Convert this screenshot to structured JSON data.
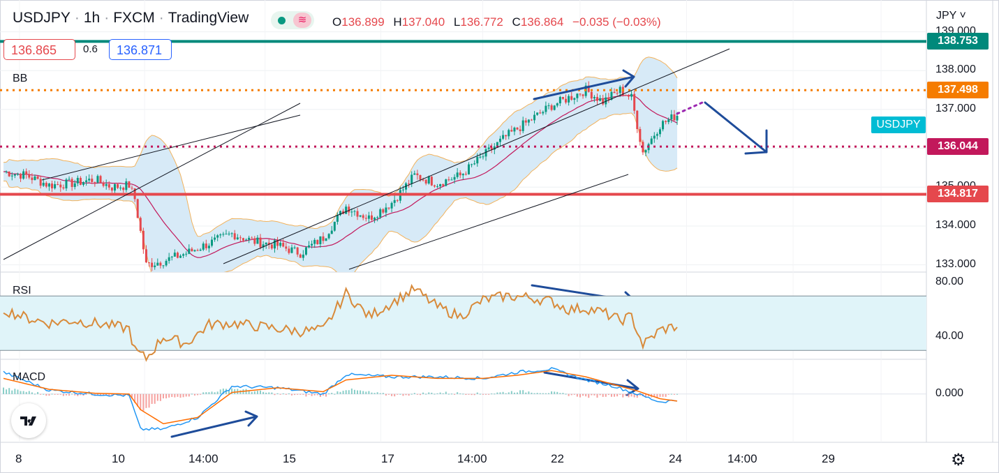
{
  "header": {
    "symbol": "USDJPY",
    "interval": "1h",
    "exchange": "FXCM",
    "platform": "TradingView",
    "ohlc": {
      "o_label": "O",
      "o": "136.899",
      "h_label": "H",
      "h": "137.040",
      "l_label": "L",
      "l": "136.772",
      "c_label": "C",
      "c": "136.864",
      "change": "−0.035 (−0.03%)"
    },
    "bid": "136.865",
    "spread": "0.6",
    "ask": "136.871",
    "currency": "JPY"
  },
  "colors": {
    "up": "#089981",
    "down": "#e5484d",
    "bb_fill": "#d7eaf7",
    "bb_band": "#f2b25c",
    "bb_basis": "#c2185b",
    "arrow": "#1e4c9a",
    "rsi": "#d88a3a",
    "macd": "#2196f3",
    "signal": "#ff6d00"
  },
  "chart_data": [
    {
      "type": "line",
      "pane": "price",
      "title": "USDJPY · 1h · FXCM",
      "indicator_label": "BB",
      "y_ticks": [
        "139.000",
        "138.000",
        "137.000",
        "136.000",
        "135.000",
        "134.000",
        "133.000"
      ],
      "ylim": [
        132.85,
        139.1
      ],
      "x_ticks": [
        "8",
        "10",
        "14:00",
        "15",
        "17",
        "14:00",
        "22",
        "24",
        "14:00",
        "29"
      ],
      "levels": [
        {
          "name": "resistance",
          "value": 138.753,
          "label": "138.753",
          "color": "#00897b",
          "style": "solid"
        },
        {
          "name": "target-up",
          "value": 137.498,
          "label": "137.498",
          "color": "#f57c00",
          "style": "dotted"
        },
        {
          "name": "target-down",
          "value": 136.044,
          "label": "136.044",
          "color": "#c2185b",
          "style": "dotted"
        },
        {
          "name": "support",
          "value": 134.817,
          "label": "134.817",
          "color": "#e5484d",
          "style": "solid"
        }
      ],
      "symbol_tag": "USDJPY",
      "series": [
        {
          "x": [
            0,
            8,
            16,
            24,
            32,
            38,
            44,
            46,
            50,
            56,
            64,
            72,
            80,
            88,
            96,
            104,
            112,
            120,
            128,
            136,
            144,
            152,
            160,
            168,
            176,
            184,
            192,
            198,
            204,
            210,
            216,
            220,
            224,
            230,
            236
          ],
          "values": [
            135.4,
            135.3,
            135.05,
            135.1,
            135.2,
            135.0,
            135.05,
            134.7,
            133.0,
            133.1,
            133.3,
            133.55,
            133.8,
            133.6,
            133.5,
            133.3,
            133.7,
            134.5,
            134.2,
            134.6,
            135.3,
            135.1,
            135.3,
            135.8,
            136.3,
            136.7,
            137.1,
            137.3,
            137.5,
            137.2,
            137.5,
            137.3,
            135.9,
            136.6,
            136.86
          ]
        }
      ]
    },
    {
      "type": "line",
      "pane": "rsi",
      "indicator_label": "RSI",
      "y_ticks": [
        "80.00",
        "40.00"
      ],
      "ylim": [
        25,
        85
      ],
      "band": [
        30,
        70
      ],
      "series": [
        {
          "x": [
            0,
            8,
            16,
            24,
            32,
            38,
            44,
            46,
            50,
            56,
            64,
            72,
            80,
            88,
            96,
            104,
            112,
            120,
            128,
            136,
            144,
            152,
            160,
            168,
            176,
            184,
            192,
            198,
            204,
            210,
            216,
            220,
            224,
            230,
            236
          ],
          "values": [
            60,
            54,
            50,
            52,
            50,
            48,
            46,
            30,
            24,
            40,
            35,
            49,
            50,
            48,
            46,
            44,
            45,
            72,
            55,
            65,
            75,
            62,
            55,
            67,
            70,
            69,
            66,
            60,
            61,
            58,
            52,
            55,
            34,
            45,
            48
          ]
        }
      ]
    },
    {
      "type": "bar",
      "pane": "macd",
      "indicator_label": "MACD",
      "y_ticks": [
        "0.000"
      ],
      "ylim": [
        -0.6,
        0.4
      ],
      "series": [
        {
          "name": "MACD",
          "x": [
            0,
            16,
            32,
            44,
            48,
            56,
            68,
            80,
            96,
            112,
            120,
            136,
            152,
            168,
            180,
            192,
            204,
            214,
            222,
            230,
            236
          ],
          "values": [
            0.28,
            0.05,
            0.0,
            -0.02,
            -0.45,
            -0.45,
            -0.3,
            0.1,
            0.08,
            0.0,
            0.25,
            0.22,
            0.22,
            0.2,
            0.28,
            0.32,
            0.18,
            0.1,
            0.0,
            -0.1,
            -0.08
          ]
        },
        {
          "name": "Signal",
          "x": [
            0,
            16,
            32,
            44,
            48,
            56,
            68,
            80,
            96,
            112,
            120,
            136,
            152,
            168,
            180,
            192,
            204,
            214,
            222,
            230,
            236
          ],
          "values": [
            0.2,
            0.06,
            0.01,
            0.0,
            -0.2,
            -0.38,
            -0.3,
            0.02,
            0.08,
            0.03,
            0.18,
            0.24,
            0.2,
            0.2,
            0.24,
            0.3,
            0.22,
            0.12,
            0.04,
            -0.06,
            -0.09
          ]
        }
      ]
    }
  ]
}
